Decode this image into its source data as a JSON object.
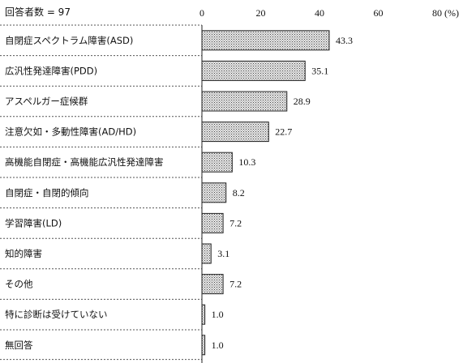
{
  "respondents_label": "回答者数 = 97",
  "chart_data": {
    "type": "bar",
    "orientation": "horizontal",
    "unit_label": "(%)",
    "categories": [
      "自閉症スペクトラム障害(ASD)",
      "広汎性発達障害(PDD)",
      "アスペルガー症候群",
      "注意欠如・多動性障害(AD/HD)",
      "高機能自閉症・高機能広汎性発達障害",
      "自閉症・自閉的傾向",
      "学習障害(LD)",
      "知的障害",
      "その他",
      "特に診断は受けていない",
      "無回答"
    ],
    "values": [
      43.3,
      35.1,
      28.9,
      22.7,
      10.3,
      8.2,
      7.2,
      3.1,
      7.2,
      1.0,
      1.0
    ],
    "value_labels": [
      "43.3",
      "35.1",
      "28.9",
      "22.7",
      "10.3",
      "8.2",
      "7.2",
      "3.1",
      "7.2",
      "1.0",
      "1.0"
    ],
    "xlim": [
      0,
      80
    ],
    "xticks": [
      0,
      20,
      40,
      60,
      80
    ],
    "bar_fill": "dotted gray",
    "grid": false
  }
}
